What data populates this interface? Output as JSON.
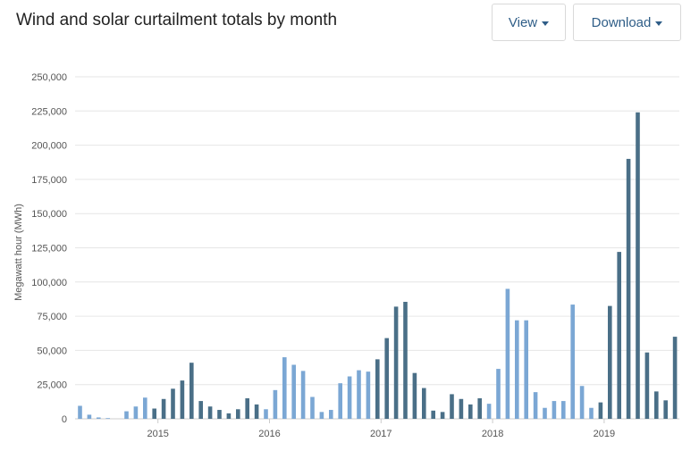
{
  "header": {
    "title": "Wind and solar curtailment totals by month",
    "view_label": "View",
    "download_label": "Download"
  },
  "chart_data": {
    "type": "bar",
    "title": "Wind and solar curtailment totals by month",
    "xlabel": "",
    "ylabel": "Megawatt hour (MWh)",
    "ylim": [
      0,
      250000
    ],
    "yticks": [
      0,
      25000,
      50000,
      75000,
      100000,
      125000,
      150000,
      175000,
      200000,
      225000,
      250000
    ],
    "ytick_labels": [
      "0",
      "25,000",
      "50,000",
      "75,000",
      "100,000",
      "125,000",
      "150,000",
      "175,000",
      "200,000",
      "225,000",
      "250,000"
    ],
    "xtick_labels": [
      "2015",
      "2016",
      "2017",
      "2018",
      "2019"
    ],
    "grid": true,
    "colors": {
      "light": "#7ba7d4",
      "dark": "#4a6f87",
      "grid": "#e6e6e6",
      "axis": "#cccccc"
    },
    "categories": [
      "2014-05",
      "2014-06",
      "2014-07",
      "2014-08",
      "2014-09",
      "2014-10",
      "2014-11",
      "2014-12",
      "2015-01",
      "2015-02",
      "2015-03",
      "2015-04",
      "2015-05",
      "2015-06",
      "2015-07",
      "2015-08",
      "2015-09",
      "2015-10",
      "2015-11",
      "2015-12",
      "2016-01",
      "2016-02",
      "2016-03",
      "2016-04",
      "2016-05",
      "2016-06",
      "2016-07",
      "2016-08",
      "2016-09",
      "2016-10",
      "2016-11",
      "2016-12",
      "2017-01",
      "2017-02",
      "2017-03",
      "2017-04",
      "2017-05",
      "2017-06",
      "2017-07",
      "2017-08",
      "2017-09",
      "2017-10",
      "2017-11",
      "2017-12",
      "2018-01",
      "2018-02",
      "2018-03",
      "2018-04",
      "2018-05",
      "2018-06",
      "2018-07",
      "2018-08",
      "2018-09",
      "2018-10",
      "2018-11",
      "2018-12",
      "2019-01",
      "2019-02",
      "2019-03",
      "2019-04",
      "2019-05",
      "2019-06",
      "2019-07",
      "2019-08",
      "2019-09"
    ],
    "values": [
      9500,
      3000,
      1000,
      500,
      0,
      5500,
      9000,
      15500,
      7500,
      14500,
      22000,
      28000,
      41000,
      13000,
      9000,
      6500,
      4000,
      7000,
      15000,
      10500,
      7000,
      21000,
      45000,
      39500,
      35000,
      16000,
      5000,
      6500,
      26000,
      31000,
      35500,
      34500,
      43500,
      59000,
      82000,
      85500,
      33500,
      22500,
      6000,
      5000,
      18000,
      14500,
      10500,
      15000,
      11000,
      36500,
      95000,
      72000,
      72000,
      19500,
      8000,
      13000,
      13000,
      83500,
      24000,
      8000,
      12000,
      82500,
      122000,
      190000,
      224000,
      48500,
      20000,
      13500,
      60000
    ],
    "shade": [
      "light",
      "light",
      "light",
      "light",
      "light",
      "light",
      "light",
      "light",
      "dark",
      "dark",
      "dark",
      "dark",
      "dark",
      "dark",
      "dark",
      "dark",
      "dark",
      "dark",
      "dark",
      "dark",
      "light",
      "light",
      "light",
      "light",
      "light",
      "light",
      "light",
      "light",
      "light",
      "light",
      "light",
      "light",
      "dark",
      "dark",
      "dark",
      "dark",
      "dark",
      "dark",
      "dark",
      "dark",
      "dark",
      "dark",
      "dark",
      "dark",
      "light",
      "light",
      "light",
      "light",
      "light",
      "light",
      "light",
      "light",
      "light",
      "light",
      "light",
      "light",
      "dark",
      "dark",
      "dark",
      "dark",
      "dark",
      "dark",
      "dark",
      "dark",
      "dark"
    ]
  }
}
